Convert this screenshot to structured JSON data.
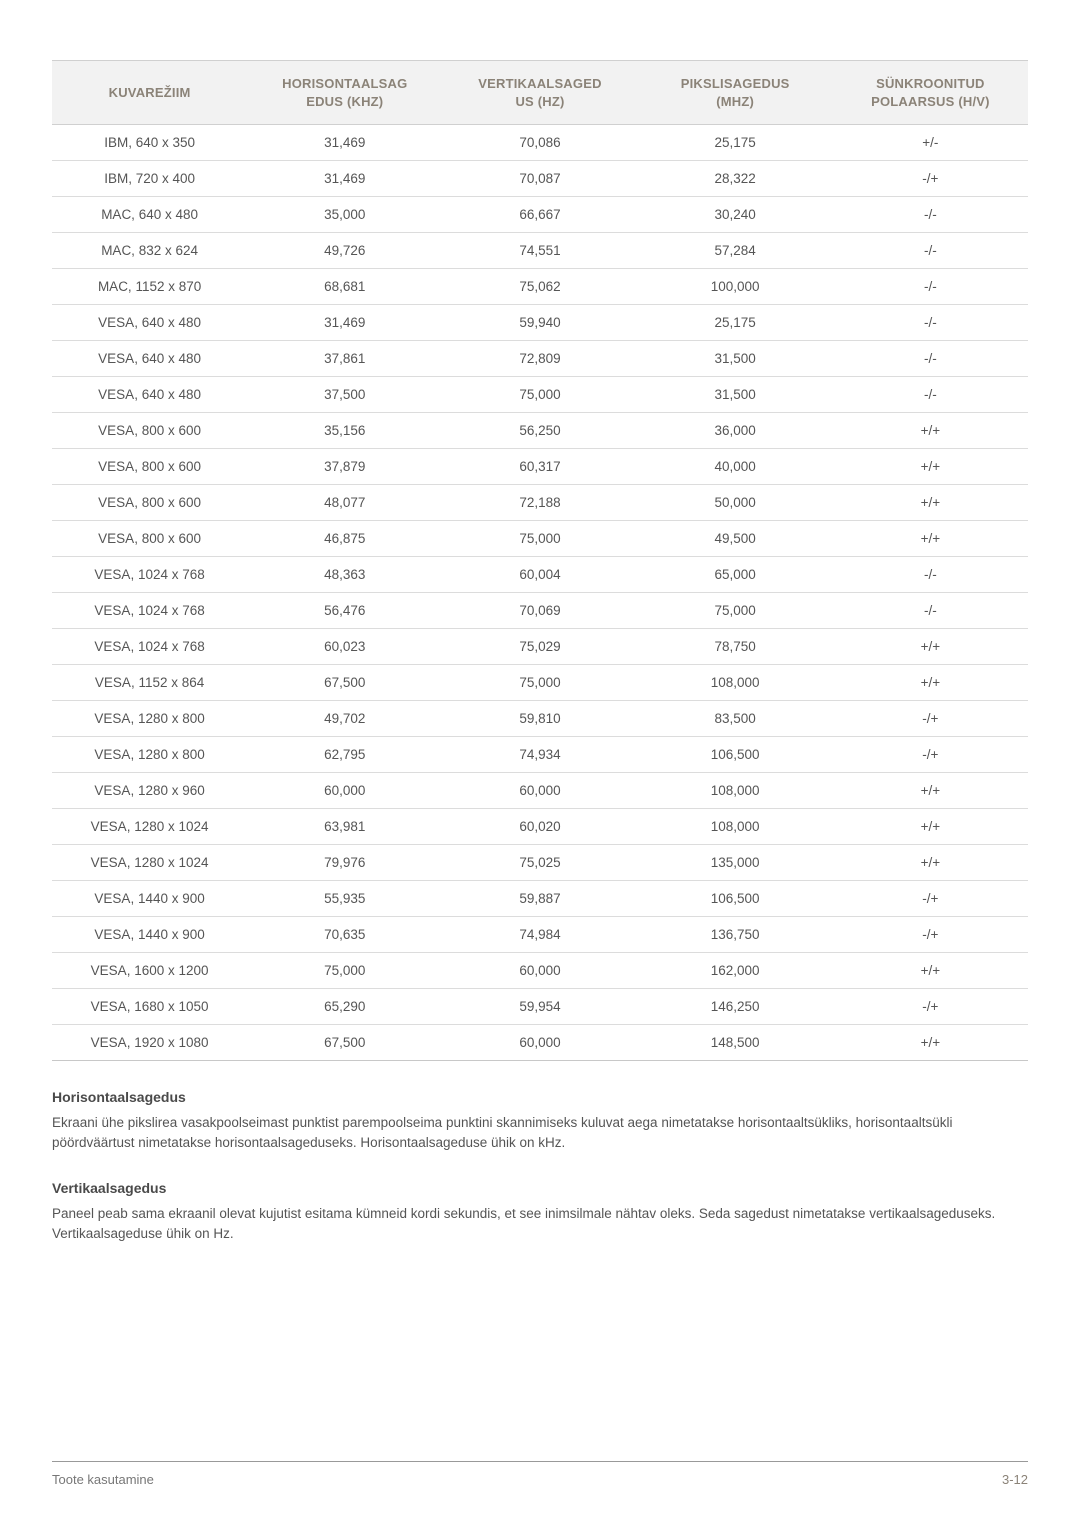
{
  "table": {
    "columns": [
      {
        "label": "KUVAREŽIIM",
        "width": "20%"
      },
      {
        "label": "HORISONTAALSAG\nEDUS (KHZ)",
        "width": "20%"
      },
      {
        "label": "VERTIKAALSAGED\nUS (HZ)",
        "width": "20%"
      },
      {
        "label": "PIKSLISAGEDUS\n(MHZ)",
        "width": "20%"
      },
      {
        "label": "SÜNKROONITUD\nPOLAARSUS (H/V)",
        "width": "20%"
      }
    ],
    "rows": [
      [
        "IBM, 640 x 350",
        "31,469",
        "70,086",
        "25,175",
        "+/-"
      ],
      [
        "IBM, 720 x 400",
        "31,469",
        "70,087",
        "28,322",
        "-/+"
      ],
      [
        "MAC, 640 x 480",
        "35,000",
        "66,667",
        "30,240",
        "-/-"
      ],
      [
        "MAC, 832 x 624",
        "49,726",
        "74,551",
        "57,284",
        "-/-"
      ],
      [
        "MAC, 1152 x 870",
        "68,681",
        "75,062",
        "100,000",
        "-/-"
      ],
      [
        "VESA, 640 x 480",
        "31,469",
        "59,940",
        "25,175",
        "-/-"
      ],
      [
        "VESA, 640 x 480",
        "37,861",
        "72,809",
        "31,500",
        "-/-"
      ],
      [
        "VESA, 640 x 480",
        "37,500",
        "75,000",
        "31,500",
        "-/-"
      ],
      [
        "VESA, 800 x 600",
        "35,156",
        "56,250",
        "36,000",
        "+/+"
      ],
      [
        "VESA, 800 x 600",
        "37,879",
        "60,317",
        "40,000",
        "+/+"
      ],
      [
        "VESA, 800 x 600",
        "48,077",
        "72,188",
        "50,000",
        "+/+"
      ],
      [
        "VESA, 800 x 600",
        "46,875",
        "75,000",
        "49,500",
        "+/+"
      ],
      [
        "VESA, 1024 x 768",
        "48,363",
        "60,004",
        "65,000",
        "-/-"
      ],
      [
        "VESA, 1024 x 768",
        "56,476",
        "70,069",
        "75,000",
        "-/-"
      ],
      [
        "VESA, 1024 x 768",
        "60,023",
        "75,029",
        "78,750",
        "+/+"
      ],
      [
        "VESA, 1152 x 864",
        "67,500",
        "75,000",
        "108,000",
        "+/+"
      ],
      [
        "VESA, 1280 x 800",
        "49,702",
        "59,810",
        "83,500",
        "-/+"
      ],
      [
        "VESA, 1280 x 800",
        "62,795",
        "74,934",
        "106,500",
        "-/+"
      ],
      [
        "VESA, 1280 x 960",
        "60,000",
        "60,000",
        "108,000",
        "+/+"
      ],
      [
        "VESA, 1280 x 1024",
        "63,981",
        "60,020",
        "108,000",
        "+/+"
      ],
      [
        "VESA, 1280 x 1024",
        "79,976",
        "75,025",
        "135,000",
        "+/+"
      ],
      [
        "VESA, 1440 x 900",
        "55,935",
        "59,887",
        "106,500",
        "-/+"
      ],
      [
        "VESA, 1440 x 900",
        "70,635",
        "74,984",
        "136,750",
        "-/+"
      ],
      [
        "VESA, 1600 x 1200",
        "75,000",
        "60,000",
        "162,000",
        "+/+"
      ],
      [
        "VESA, 1680 x 1050",
        "65,290",
        "59,954",
        "146,250",
        "-/+"
      ],
      [
        "VESA, 1920 x 1080",
        "67,500",
        "60,000",
        "148,500",
        "+/+"
      ]
    ],
    "header_bg": "#f2f2f2",
    "header_color": "#8b8378",
    "cell_color": "#555555",
    "border_color": "#dcdcdc",
    "header_fontsize": 13,
    "cell_fontsize": 13.5
  },
  "sections": [
    {
      "title": "Horisontaalsagedus",
      "body": "Ekraani ühe pikslirea vasakpoolseimast punktist parempoolseima punktini skannimiseks kuluvat aega nimetatakse horisontaaltsükliks, horisontaaltsükli pöördväärtust nimetatakse horisontaalsageduseks. Horisontaalsageduse ühik on kHz."
    },
    {
      "title": "Vertikaalsagedus",
      "body": "Paneel peab sama ekraanil olevat kujutist esitama kümneid kordi sekundis, et see inimsilmale nähtav oleks. Seda sagedust nimetatakse vertikaalsageduseks. Vertikaalsageduse ühik on Hz."
    }
  ],
  "footer": {
    "left": "Toote kasutamine",
    "right": "3-12"
  }
}
